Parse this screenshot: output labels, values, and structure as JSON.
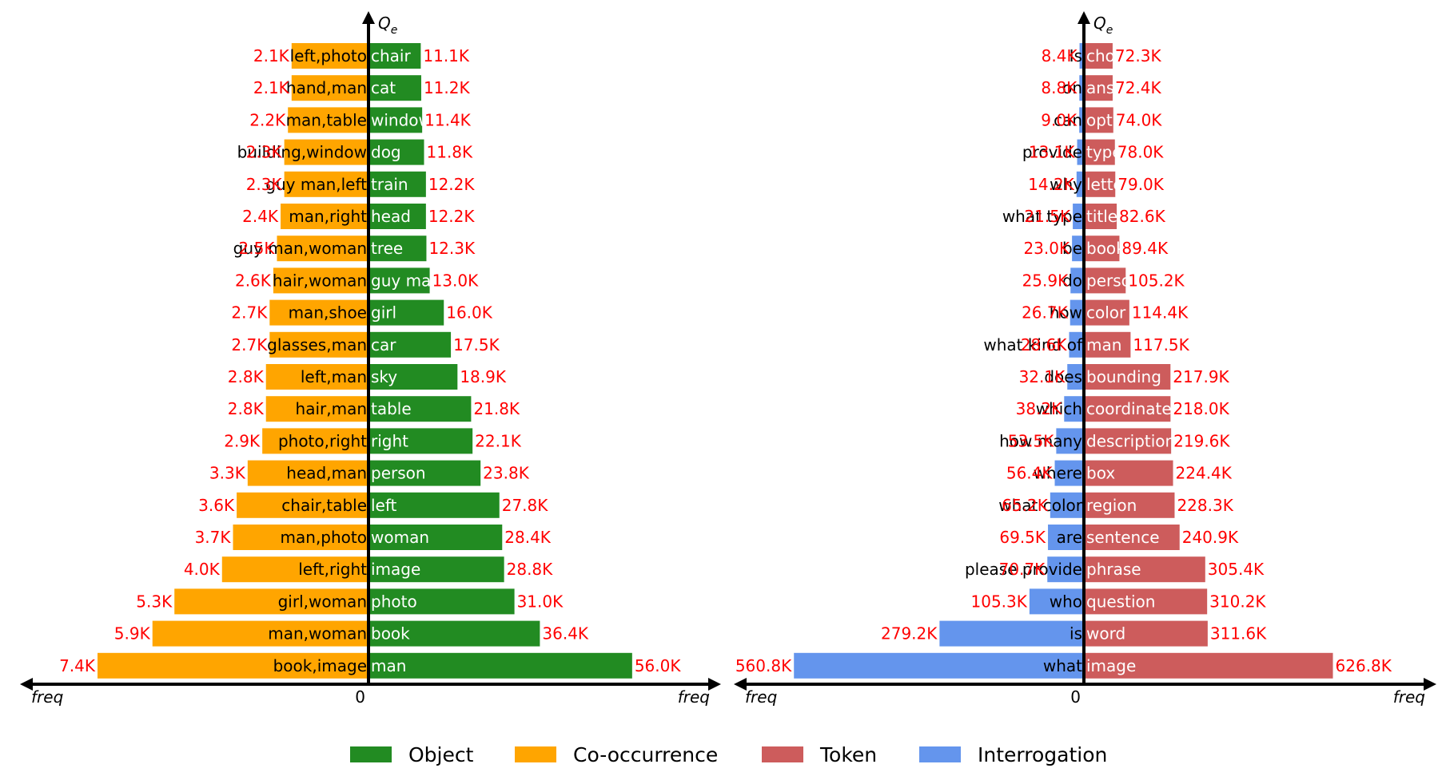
{
  "colors": {
    "object": "#228b22",
    "cooccurrence": "#ffa500",
    "token": "#cd5c5c",
    "interrogation": "#6495ed",
    "value_label": "#ff0000"
  },
  "legend": [
    {
      "label": "Object",
      "color": "#228b22"
    },
    {
      "label": "Co-occurrence",
      "color": "#ffa500"
    },
    {
      "label": "Token",
      "color": "#cd5c5c"
    },
    {
      "label": "Interrogation",
      "color": "#6495ed"
    }
  ],
  "chart_data": [
    {
      "type": "bar",
      "orientation": "horizontal-diverging",
      "y_axis_label": "Q",
      "y_axis_label_sub": "e",
      "x_axis_label_left": "freq",
      "x_axis_label_right": "freq",
      "zero_label": "0",
      "left_series": {
        "name": "Co-occurrence",
        "categories": [
          "left,photo",
          "hand,man",
          "man,table",
          "building,window",
          "guy man,left",
          "man,right",
          "guy man,woman",
          "hair,woman",
          "man,shoe",
          "glasses,man",
          "left,man",
          "hair,man",
          "photo,right",
          "head,man",
          "chair,table",
          "man,photo",
          "left,right",
          "girl,woman",
          "man,woman",
          "book,image"
        ],
        "values": [
          2.1,
          2.1,
          2.2,
          2.3,
          2.3,
          2.4,
          2.5,
          2.6,
          2.7,
          2.7,
          2.8,
          2.8,
          2.9,
          3.3,
          3.6,
          3.7,
          4.0,
          5.3,
          5.9,
          7.4
        ],
        "value_labels": [
          "2.1K",
          "2.1K",
          "2.2K",
          "2.3K",
          "2.3K",
          "2.4K",
          "2.5K",
          "2.6K",
          "2.7K",
          "2.7K",
          "2.8K",
          "2.8K",
          "2.9K",
          "3.3K",
          "3.6K",
          "3.7K",
          "4.0K",
          "5.3K",
          "5.9K",
          "7.4K"
        ],
        "unit": "K"
      },
      "right_series": {
        "name": "Object",
        "categories": [
          "chair",
          "cat",
          "window",
          "dog",
          "train",
          "head",
          "tree",
          "guy man",
          "girl",
          "car",
          "sky",
          "table",
          "right",
          "person",
          "left",
          "woman",
          "image",
          "photo",
          "book",
          "man"
        ],
        "values": [
          11.1,
          11.2,
          11.4,
          11.8,
          12.2,
          12.2,
          12.3,
          13.0,
          16.0,
          17.5,
          18.9,
          21.8,
          22.1,
          23.8,
          27.8,
          28.4,
          28.8,
          31.0,
          36.4,
          56.0
        ],
        "value_labels": [
          "11.1K",
          "11.2K",
          "11.4K",
          "11.8K",
          "12.2K",
          "12.2K",
          "12.3K",
          "13.0K",
          "16.0K",
          "17.5K",
          "18.9K",
          "21.8K",
          "22.1K",
          "23.8K",
          "27.8K",
          "28.4K",
          "28.8K",
          "31.0K",
          "36.4K",
          "56.0K"
        ],
        "unit": "K"
      }
    },
    {
      "type": "bar",
      "orientation": "horizontal-diverging",
      "y_axis_label": "Q",
      "y_axis_label_sub": "e",
      "x_axis_label_left": "freq",
      "x_axis_label_right": "freq",
      "zero_label": "0",
      "left_series": {
        "name": "Interrogation",
        "categories": [
          "Is",
          "on",
          "can",
          "provide",
          "why",
          "what type",
          "be",
          "do",
          "how",
          "what kind of",
          "does",
          "which",
          "how many",
          "where",
          "what color",
          "are",
          "please provide",
          "who",
          "is",
          "what"
        ],
        "values": [
          8.4,
          8.8,
          9.0,
          13.1,
          14.2,
          21.5,
          23.0,
          25.9,
          26.7,
          28.6,
          32.1,
          38.2,
          53.5,
          56.4,
          65.2,
          69.5,
          70.7,
          105.3,
          279.2,
          560.8
        ],
        "value_labels": [
          "8.4K",
          "8.8K",
          "9.0K",
          "13.1K",
          "14.2K",
          "21.5K",
          "23.0K",
          "25.9K",
          "26.7K",
          "28.6K",
          "32.1K",
          "38.2K",
          "53.5K",
          "56.4K",
          "65.2K",
          "69.5K",
          "70.7K",
          "105.3K",
          "279.2K",
          "560.8K"
        ],
        "unit": "K"
      },
      "right_series": {
        "name": "Token",
        "categories": [
          "choice",
          "answer",
          "option",
          "type",
          "letter",
          "title",
          "book",
          "person",
          "color",
          "man",
          "bounding",
          "coordinate",
          "description",
          "box",
          "region",
          "sentence",
          "phrase",
          "question",
          "word",
          "image"
        ],
        "values": [
          72.3,
          72.4,
          74.0,
          78.0,
          79.0,
          82.6,
          89.4,
          105.2,
          114.4,
          117.5,
          217.9,
          218.0,
          219.6,
          224.4,
          228.3,
          240.9,
          305.4,
          310.2,
          311.6,
          626.8
        ],
        "value_labels": [
          "72.3K",
          "72.4K",
          "74.0K",
          "78.0K",
          "79.0K",
          "82.6K",
          "89.4K",
          "105.2K",
          "114.4K",
          "117.5K",
          "217.9K",
          "218.0K",
          "219.6K",
          "224.4K",
          "228.3K",
          "240.9K",
          "305.4K",
          "310.2K",
          "311.6K",
          "626.8K"
        ],
        "unit": "K"
      }
    }
  ]
}
